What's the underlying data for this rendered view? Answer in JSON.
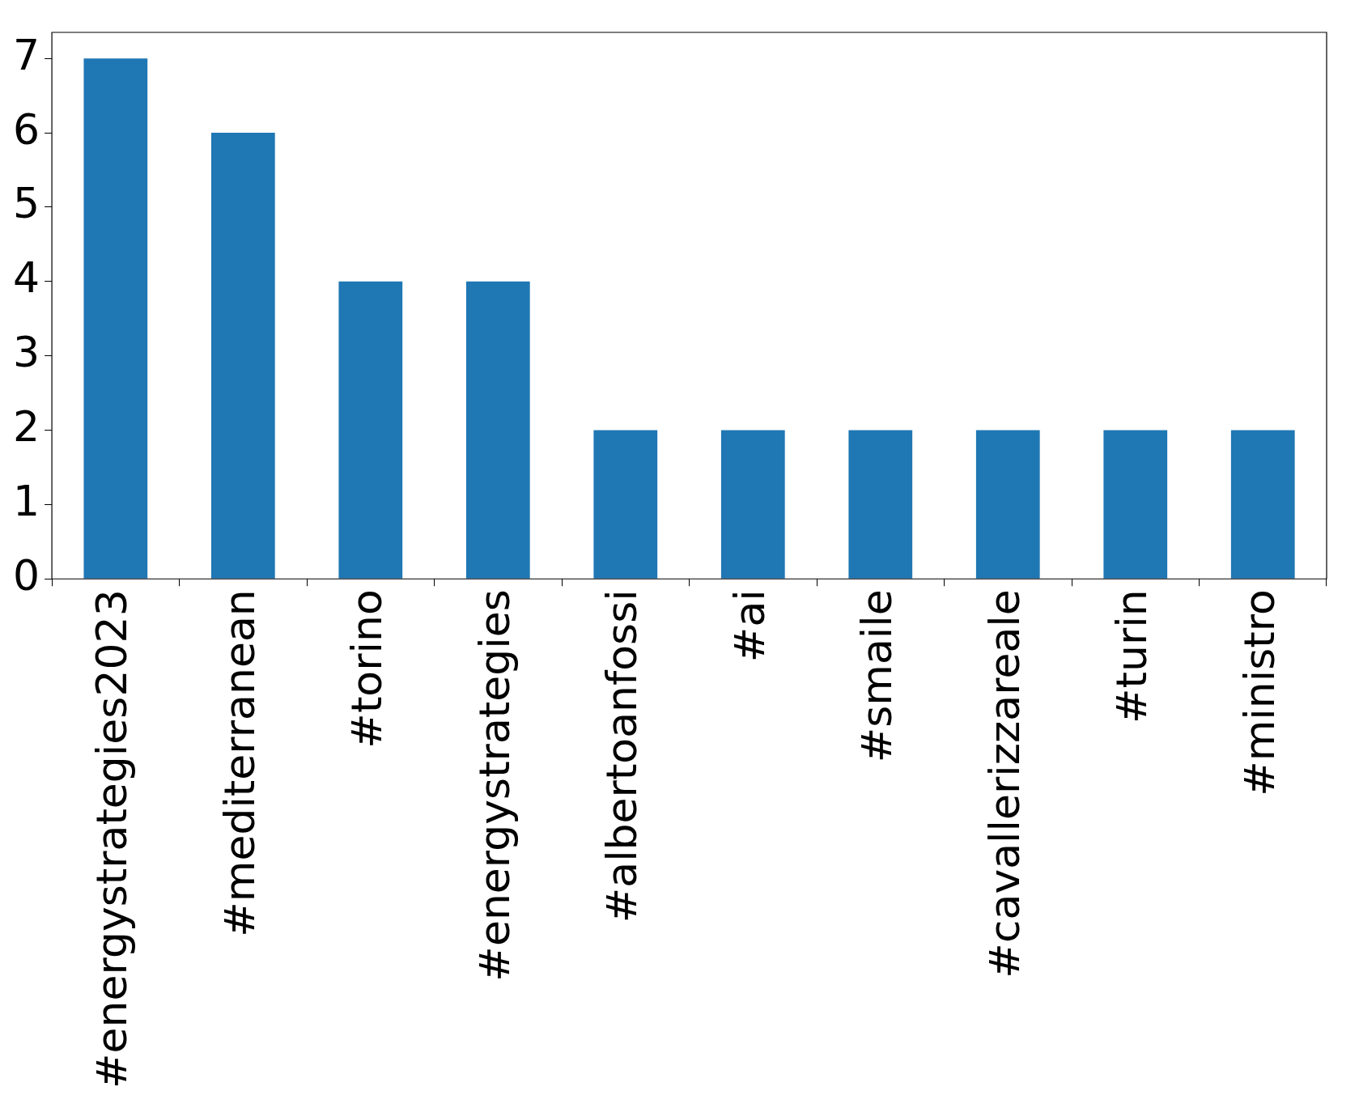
{
  "chart_data": {
    "type": "bar",
    "categories": [
      "#energystrategies2023",
      "#mediterranean",
      "#torino",
      "#energystrategies",
      "#albertoanfossi",
      "#ai",
      "#smaile",
      "#cavallerizzareale",
      "#turin",
      "#ministro"
    ],
    "values": [
      7,
      6,
      4,
      4,
      2,
      2,
      2,
      2,
      2,
      2
    ],
    "color": "#1f77b4",
    "ylim": [
      0,
      7.35
    ],
    "yticks": [
      0,
      1,
      2,
      3,
      4,
      5,
      6,
      7
    ],
    "grid": false,
    "legend": false
  }
}
